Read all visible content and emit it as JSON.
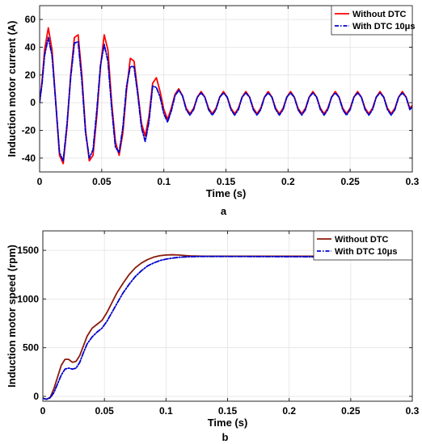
{
  "chart_data": [
    {
      "type": "line",
      "panel_label": "a",
      "xlabel": "Time (s)",
      "ylabel": "Induction motor current (A)",
      "xlim": [
        0,
        0.3
      ],
      "ylim": [
        -50,
        70
      ],
      "x_ticks": [
        0,
        0.05,
        0.1,
        0.15,
        0.2,
        0.25,
        0.3
      ],
      "x_tick_labels": [
        "0",
        "0.05",
        "0.1",
        "0.15",
        "0.2",
        "0.25",
        "0.3"
      ],
      "y_ticks": [
        -40,
        -20,
        0,
        20,
        40,
        60
      ],
      "y_tick_labels": [
        "-40",
        "-20",
        "0",
        "20",
        "40",
        "60"
      ],
      "legend_position": "top-right",
      "series": [
        {
          "name": "Without DTC",
          "color": "#ff0000",
          "style": "solid",
          "x": [
            0,
            0.002,
            0.004,
            0.007,
            0.01,
            0.013,
            0.016,
            0.019,
            0.022,
            0.025,
            0.028,
            0.031,
            0.034,
            0.037,
            0.04,
            0.043,
            0.046,
            0.049,
            0.052,
            0.055,
            0.058,
            0.061,
            0.064,
            0.067,
            0.07,
            0.073,
            0.076,
            0.079,
            0.082,
            0.085,
            0.088,
            0.091,
            0.094,
            0.097,
            0.1,
            0.103,
            0.106,
            0.109,
            0.112,
            0.115,
            0.118,
            0.121,
            0.124,
            0.127,
            0.13,
            0.133,
            0.136,
            0.139,
            0.142,
            0.145,
            0.148,
            0.151,
            0.154,
            0.157,
            0.16,
            0.163,
            0.166,
            0.169,
            0.172,
            0.175,
            0.178,
            0.181,
            0.184,
            0.187,
            0.19,
            0.193,
            0.196,
            0.199,
            0.202,
            0.205,
            0.208,
            0.211,
            0.214,
            0.217,
            0.22,
            0.223,
            0.226,
            0.229,
            0.232,
            0.235,
            0.238,
            0.241,
            0.244,
            0.247,
            0.25,
            0.253,
            0.256,
            0.259,
            0.262,
            0.265,
            0.268,
            0.271,
            0.274,
            0.277,
            0.28,
            0.283,
            0.286,
            0.289,
            0.292,
            0.295,
            0.298,
            0.3
          ],
          "values": [
            0,
            16,
            38,
            54,
            38,
            0,
            -38,
            -44,
            -18,
            20,
            47,
            49,
            20,
            -20,
            -42,
            -38,
            -10,
            26,
            49,
            38,
            0,
            -28,
            -38,
            -22,
            9,
            32,
            30,
            8,
            -15,
            -24,
            -10,
            14,
            18,
            8,
            -5,
            -12,
            -4,
            6,
            10,
            5,
            -4,
            -8,
            -4,
            4,
            8,
            4,
            -4,
            -8,
            -4,
            4,
            8,
            4,
            -4,
            -8,
            -4,
            4,
            8,
            4,
            -4,
            -8,
            -4,
            4,
            8,
            4,
            -4,
            -8,
            -4,
            4,
            8,
            4,
            -4,
            -8,
            -4,
            4,
            8,
            4,
            -4,
            -8,
            -4,
            4,
            8,
            4,
            -4,
            -8,
            -4,
            4,
            8,
            4,
            -4,
            -8,
            -4,
            4,
            8,
            4,
            -4,
            -8,
            -4,
            4,
            8,
            4,
            -4,
            -2
          ]
        },
        {
          "name": "With DTC 10μs",
          "color": "#0000cc",
          "style": "dashdot",
          "x": [
            0,
            0.002,
            0.004,
            0.007,
            0.01,
            0.013,
            0.016,
            0.019,
            0.022,
            0.025,
            0.028,
            0.031,
            0.034,
            0.037,
            0.04,
            0.043,
            0.046,
            0.049,
            0.052,
            0.055,
            0.058,
            0.061,
            0.064,
            0.067,
            0.07,
            0.073,
            0.076,
            0.079,
            0.082,
            0.085,
            0.088,
            0.091,
            0.094,
            0.097,
            0.1,
            0.103,
            0.106,
            0.109,
            0.112,
            0.115,
            0.118,
            0.121,
            0.124,
            0.127,
            0.13,
            0.133,
            0.136,
            0.139,
            0.142,
            0.145,
            0.148,
            0.151,
            0.154,
            0.157,
            0.16,
            0.163,
            0.166,
            0.169,
            0.172,
            0.175,
            0.178,
            0.181,
            0.184,
            0.187,
            0.19,
            0.193,
            0.196,
            0.199,
            0.202,
            0.205,
            0.208,
            0.211,
            0.214,
            0.217,
            0.22,
            0.223,
            0.226,
            0.229,
            0.232,
            0.235,
            0.238,
            0.241,
            0.244,
            0.247,
            0.25,
            0.253,
            0.256,
            0.259,
            0.262,
            0.265,
            0.268,
            0.271,
            0.274,
            0.277,
            0.28,
            0.283,
            0.286,
            0.289,
            0.292,
            0.295,
            0.298,
            0.3
          ],
          "values": [
            0,
            14,
            34,
            47,
            34,
            0,
            -36,
            -42,
            -16,
            18,
            43,
            44,
            16,
            -22,
            -40,
            -34,
            -6,
            27,
            42,
            30,
            -4,
            -32,
            -36,
            -18,
            12,
            26,
            26,
            6,
            -18,
            -28,
            -14,
            12,
            11,
            4,
            -8,
            -14,
            -6,
            5,
            9,
            5,
            -5,
            -9,
            -5,
            4,
            7,
            4,
            -5,
            -9,
            -5,
            4,
            7,
            4,
            -5,
            -9,
            -5,
            4,
            7,
            4,
            -5,
            -9,
            -5,
            4,
            7,
            4,
            -5,
            -9,
            -5,
            4,
            7,
            4,
            -5,
            -9,
            -5,
            4,
            7,
            4,
            -5,
            -9,
            -5,
            4,
            7,
            4,
            -5,
            -9,
            -5,
            4,
            7,
            4,
            -5,
            -9,
            -5,
            4,
            7,
            4,
            -5,
            -9,
            -5,
            4,
            7,
            4,
            -5,
            -3
          ]
        }
      ]
    },
    {
      "type": "line",
      "panel_label": "b",
      "xlabel": "Time (s)",
      "ylabel": "Induction motor speed (rpm)",
      "xlim": [
        0,
        0.3
      ],
      "ylim": [
        -50,
        1700
      ],
      "x_ticks": [
        0,
        0.05,
        0.1,
        0.15,
        0.2,
        0.25,
        0.3
      ],
      "x_tick_labels": [
        "0",
        "0.05",
        "0.1",
        "0.15",
        "0.2",
        "0.25",
        "0.3"
      ],
      "y_ticks": [
        0,
        500,
        1000,
        1500
      ],
      "y_tick_labels": [
        "0",
        "500",
        "1000",
        "1500"
      ],
      "legend_position": "top-right",
      "series": [
        {
          "name": "Without DTC",
          "color": "#8b1a0a",
          "style": "solid",
          "x": [
            0,
            0.003,
            0.006,
            0.009,
            0.012,
            0.015,
            0.018,
            0.021,
            0.024,
            0.027,
            0.03,
            0.033,
            0.036,
            0.04,
            0.044,
            0.048,
            0.052,
            0.056,
            0.06,
            0.065,
            0.07,
            0.075,
            0.08,
            0.085,
            0.09,
            0.095,
            0.1,
            0.105,
            0.11,
            0.115,
            0.12,
            0.13,
            0.15,
            0.2,
            0.25,
            0.3
          ],
          "values": [
            -20,
            -30,
            -10,
            80,
            200,
            320,
            380,
            380,
            350,
            360,
            420,
            520,
            620,
            700,
            740,
            780,
            860,
            960,
            1060,
            1160,
            1250,
            1320,
            1370,
            1405,
            1430,
            1445,
            1452,
            1455,
            1452,
            1447,
            1443,
            1440,
            1440,
            1440,
            1440,
            1440
          ]
        },
        {
          "name": "With DTC 10μs",
          "color": "#0000cc",
          "style": "dashdot",
          "x": [
            0,
            0.003,
            0.006,
            0.009,
            0.012,
            0.015,
            0.018,
            0.021,
            0.024,
            0.027,
            0.03,
            0.033,
            0.036,
            0.04,
            0.044,
            0.048,
            0.052,
            0.056,
            0.06,
            0.065,
            0.07,
            0.075,
            0.08,
            0.085,
            0.09,
            0.095,
            0.1,
            0.105,
            0.11,
            0.115,
            0.12,
            0.13,
            0.15,
            0.2,
            0.25,
            0.3
          ],
          "values": [
            -20,
            -30,
            -15,
            40,
            130,
            220,
            280,
            290,
            280,
            290,
            350,
            450,
            540,
            610,
            660,
            700,
            770,
            860,
            950,
            1060,
            1150,
            1230,
            1290,
            1340,
            1370,
            1395,
            1410,
            1420,
            1428,
            1432,
            1435,
            1437,
            1437,
            1435,
            1432,
            1432
          ]
        }
      ]
    }
  ]
}
